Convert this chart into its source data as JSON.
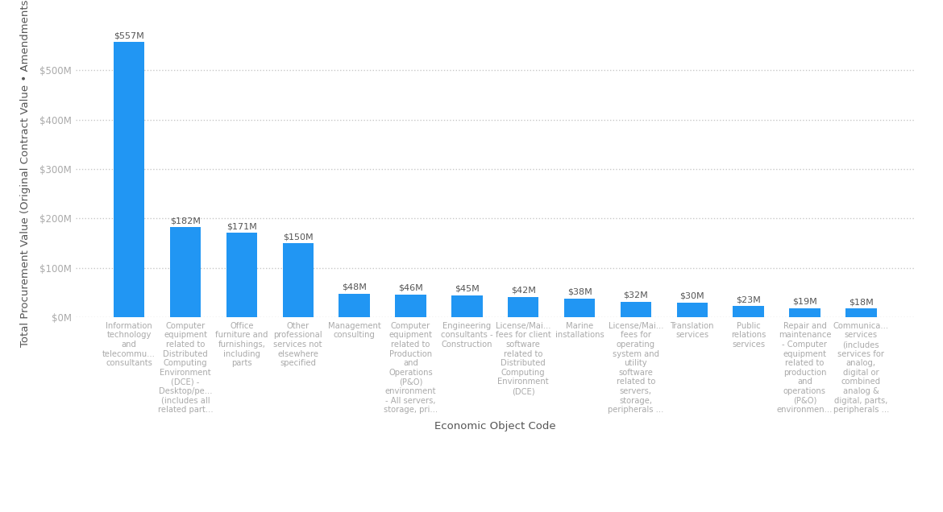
{
  "categories": [
    "Information\ntechnology\nand\ntelecommu...\nconsultants",
    "Computer\nequipment\nrelated to\nDistributed\nComputing\nEnvironment\n(DCE) -\nDesktop/pe...\n(includes all\nrelated part...",
    "Office\nfurniture and\nfurnishings,\nincluding\nparts",
    "Other\nprofessional\nservices not\nelsewhere\nspecified",
    "Management\nconsulting",
    "Computer\nequipment\nrelated to\nProduction\nand\nOperations\n(P&O)\nenvironment\n- All servers,\nstorage, pri...",
    "Engineering\nconsultants -\nConstruction",
    "License/Mai...\nfees for client\nsoftware\nrelated to\nDistributed\nComputing\nEnvironment\n(DCE)",
    "Marine\ninstallations",
    "License/Mai...\nfees for\noperating\nsystem and\nutility\nsoftware\nrelated to\nservers,\nstorage,\nperipherals ...",
    "Translation\nservices",
    "Public\nrelations\nservices",
    "Repair and\nmaintenance\n- Computer\nequipment\nrelated to\nproduction\nand\noperations\n(P&O)\nenvironmen...",
    "Communica...\nservices\n(includes\nservices for\nanalog,\ndigital or\ncombined\nanalog &\ndigital, parts,\nperipherals ..."
  ],
  "values": [
    557,
    182,
    171,
    150,
    48,
    46,
    45,
    42,
    38,
    32,
    30,
    23,
    19,
    18
  ],
  "bar_color": "#2196F3",
  "value_labels": [
    "$557M",
    "$182M",
    "$171M",
    "$150M",
    "$48M",
    "$46M",
    "$45M",
    "$42M",
    "$38M",
    "$32M",
    "$30M",
    "$23M",
    "$19M",
    "$18M"
  ],
  "ylabel": "Total Procurement Value (Original Contract Value • Amendments)",
  "xlabel": "Economic Object Code",
  "ytick_labels": [
    "$0M",
    "$100M",
    "$200M",
    "$300M",
    "$400M",
    "$500M"
  ],
  "ytick_values": [
    0,
    100,
    200,
    300,
    400,
    500
  ],
  "ylim": [
    0,
    590
  ],
  "background_color": "#ffffff",
  "grid_color": "#c8c8c8",
  "tick_label_color": "#aaaaaa",
  "axis_label_color": "#555555",
  "bar_label_color": "#555555",
  "label_fontsize": 7.2,
  "tick_fontsize": 8.5,
  "axis_label_fontsize": 9.5,
  "value_label_fontsize": 8
}
